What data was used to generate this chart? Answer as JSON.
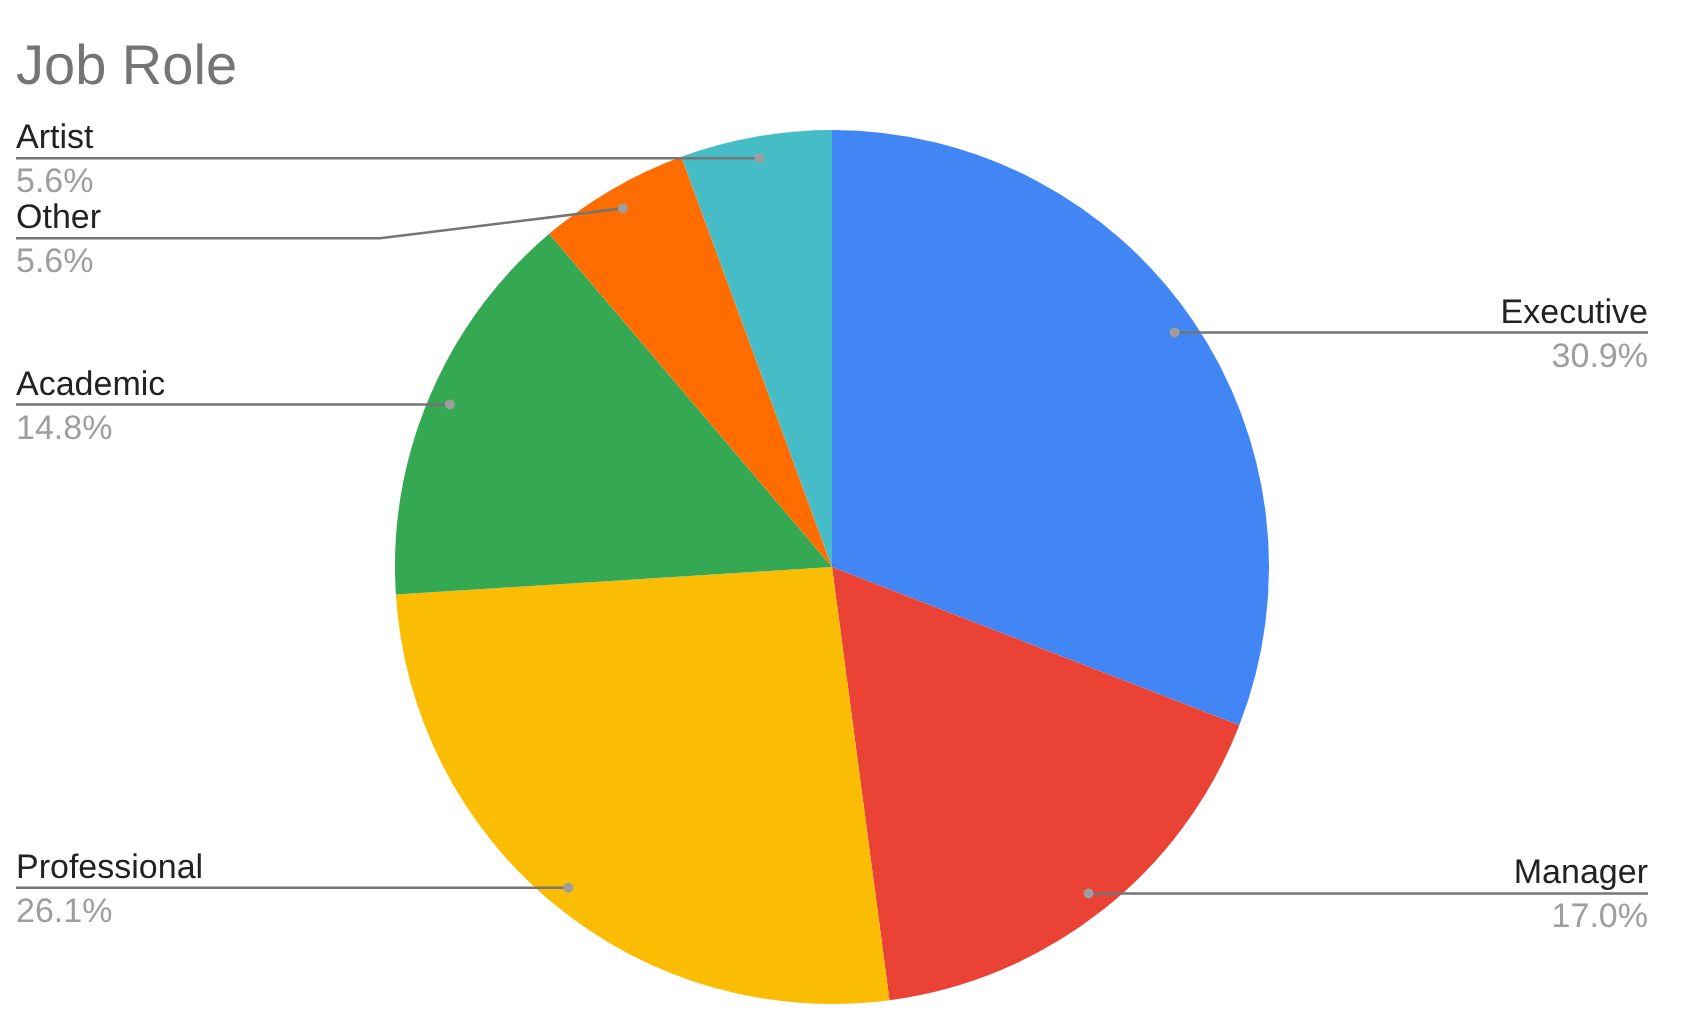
{
  "chart_data": {
    "type": "pie",
    "title": "Job Role",
    "categories": [
      "Executive",
      "Manager",
      "Professional",
      "Academic",
      "Other",
      "Artist"
    ],
    "values": [
      30.9,
      17.0,
      26.1,
      14.8,
      5.6,
      5.6
    ],
    "colors": [
      "#4285f4",
      "#ea4335",
      "#fbbc04",
      "#34a853",
      "#ff6d01",
      "#46bdc6"
    ],
    "value_labels": [
      "30.9%",
      "17.0%",
      "26.1%",
      "14.8%",
      "5.6%",
      "5.6%"
    ],
    "legend": false
  }
}
